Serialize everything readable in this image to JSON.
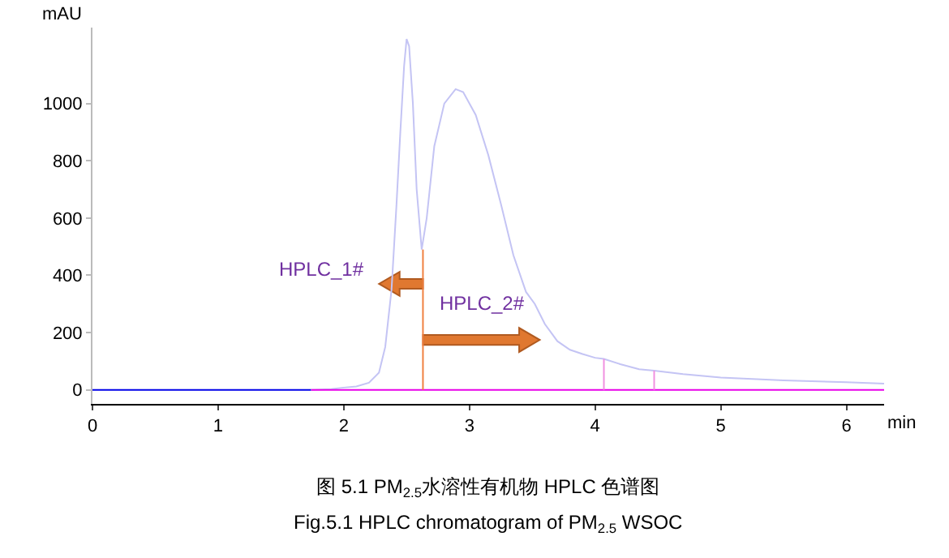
{
  "chart_data": {
    "type": "line",
    "title": "图 5.1 PM$_{2.5}$水溶性有机物 HPLC 色谱图",
    "subtitle": "Fig.5.1 HPLC chromatogram of PM$_{2.5}$ WSOC",
    "xlabel": "min",
    "ylabel": "mAU",
    "series": [
      {
        "color": "#c4c4f4",
        "x": [
          1.74,
          1.9,
          2.0,
          2.1,
          2.2,
          2.28,
          2.33,
          2.38,
          2.42,
          2.45,
          2.48,
          2.5,
          2.52,
          2.55,
          2.58,
          2.62,
          2.66,
          2.72,
          2.8,
          2.89,
          2.95,
          3.05,
          3.15,
          3.25,
          3.35,
          3.45,
          3.52,
          3.6,
          3.7,
          3.8,
          3.9,
          4.0,
          4.07,
          4.2,
          4.35,
          4.47,
          4.7,
          5.0,
          5.5,
          6.0,
          6.3
        ],
        "values": [
          0,
          3,
          8,
          12,
          25,
          60,
          150,
          350,
          650,
          900,
          1130,
          1225,
          1200,
          1000,
          700,
          490,
          600,
          850,
          1000,
          1050,
          1040,
          960,
          820,
          650,
          470,
          342,
          300,
          230,
          170,
          140,
          125,
          112,
          108,
          90,
          72,
          67,
          55,
          43,
          33,
          27,
          22
        ]
      },
      {
        "color": "#0000e8",
        "x": [
          0,
          1.74
        ],
        "values": [
          0,
          0
        ]
      },
      {
        "color": "#e800e8",
        "x": [
          1.74,
          6.3
        ],
        "values": [
          0,
          0
        ]
      },
      {
        "color": "#f08040",
        "x": [
          2.63,
          2.63
        ],
        "values": [
          0,
          490
        ]
      },
      {
        "color": "#f090e0",
        "x": [
          4.07,
          4.07
        ],
        "values": [
          0,
          108
        ]
      },
      {
        "color": "#f090e0",
        "x": [
          4.47,
          4.47
        ],
        "values": [
          0,
          67
        ]
      }
    ],
    "annotations": [
      "HPLC_1#",
      "HPLC_2#"
    ],
    "xlim": [
      0,
      6.3
    ],
    "xticks": [
      0,
      1,
      2,
      3,
      4,
      5,
      6
    ],
    "ylim": [
      -49,
      1265
    ],
    "yticks": [
      0,
      200,
      400,
      600,
      800,
      1000
    ],
    "marker": "none",
    "line_style": "solid"
  }
}
